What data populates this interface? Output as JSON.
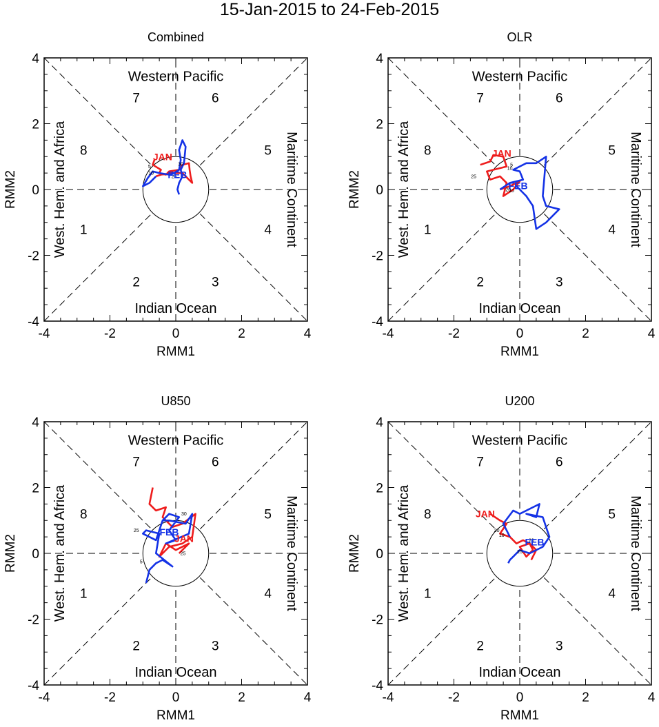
{
  "title": "15-Jan-2015 to 24-Feb-2015",
  "colors": {
    "jan": "#ee1c1c",
    "feb": "#1432e6",
    "axes": "#000000"
  },
  "labels": {
    "xlabel": "RMM1",
    "ylabel": "RMM2",
    "regions": {
      "top": "Western Pacific",
      "bottom": "Indian Ocean",
      "left": "West. Hem. and Africa",
      "right": "Maritime Continent"
    },
    "phases": [
      "1",
      "2",
      "3",
      "4",
      "5",
      "6",
      "7",
      "8"
    ],
    "months": [
      "JAN",
      "FEB"
    ]
  },
  "chart_data": [
    {
      "type": "line",
      "title": "Combined",
      "xlabel": "RMM1",
      "ylabel": "RMM2",
      "xlim": [
        -4,
        4
      ],
      "ylim": [
        -4,
        4
      ],
      "xticks": [
        "-4",
        "-2",
        "0",
        "2",
        "4"
      ],
      "yticks": [
        "-4",
        "-2",
        "0",
        "2",
        "4"
      ],
      "series": [
        {
          "name": "JAN",
          "x": [
            -0.65,
            -0.7,
            -0.45,
            -0.5,
            -0.3,
            -0.2,
            0.1,
            0.2,
            0.4,
            0.42,
            0.45,
            0.5,
            0.4,
            0.2,
            -0.1,
            -0.45,
            -0.6
          ],
          "y": [
            0.9,
            0.75,
            0.6,
            0.5,
            0.45,
            0.55,
            0.6,
            0.75,
            0.8,
            0.6,
            0.4,
            0.2,
            0.3,
            0.5,
            0.5,
            0.45,
            0.4
          ]
        },
        {
          "name": "FEB",
          "x": [
            -0.6,
            -0.8,
            -1.0,
            -0.85,
            -0.7,
            -0.5,
            -0.2,
            -0.05,
            0.1,
            0.15,
            0.1,
            0.2,
            0.3,
            0.25,
            0.15,
            0.2,
            0.1,
            0.05,
            0.1
          ],
          "y": [
            0.4,
            0.2,
            0.1,
            0.35,
            0.55,
            0.5,
            0.45,
            0.5,
            0.6,
            0.9,
            1.2,
            1.5,
            1.3,
            0.8,
            0.6,
            0.4,
            0.2,
            0.0,
            -0.15
          ]
        }
      ],
      "month_labels": [
        {
          "text": "JAN",
          "x": -0.4,
          "y": 1.0,
          "series": "JAN"
        },
        {
          "text": "FEB",
          "x": 0.05,
          "y": 0.45,
          "series": "FEB"
        }
      ],
      "day_labels": [
        {
          "text": "5",
          "x": -0.8,
          "y": 0.65
        },
        {
          "text": "10",
          "x": -0.75,
          "y": 0.45
        },
        {
          "text": "30",
          "x": 0.15,
          "y": 0.72
        },
        {
          "text": "25",
          "x": -0.05,
          "y": 0.35
        }
      ]
    },
    {
      "type": "line",
      "title": "OLR",
      "xlabel": "RMM1",
      "ylabel": "RMM2",
      "xlim": [
        -4,
        4
      ],
      "ylim": [
        -4,
        4
      ],
      "xticks": [
        "-4",
        "-2",
        "0",
        "2",
        "4"
      ],
      "yticks": [
        "-4",
        "-2",
        "0",
        "2",
        "4"
      ],
      "series": [
        {
          "name": "JAN",
          "x": [
            -1.2,
            -0.9,
            -0.8,
            -0.5,
            -0.4,
            -1.0,
            -0.9,
            -0.6,
            -0.4,
            -0.5,
            -0.2,
            0.0,
            -0.3,
            -0.6
          ],
          "y": [
            0.75,
            0.85,
            1.05,
            1.0,
            0.7,
            0.55,
            0.3,
            0.4,
            0.2,
            -0.2,
            0.0,
            0.25,
            0.1,
            0.0
          ]
        },
        {
          "name": "FEB",
          "x": [
            -0.6,
            -0.3,
            0.1,
            0.0,
            -0.2,
            0.2,
            0.5,
            0.8,
            0.7,
            0.8,
            1.2,
            0.8,
            0.5,
            0.4,
            0.2,
            0.0,
            -0.1,
            0.0
          ],
          "y": [
            0.0,
            0.2,
            0.3,
            0.55,
            0.6,
            0.8,
            0.8,
            1.0,
            -0.2,
            -0.5,
            -0.6,
            -1.0,
            -1.2,
            -0.5,
            -0.2,
            0.0,
            0.1,
            0.0
          ]
        }
      ],
      "month_labels": [
        {
          "text": "JAN",
          "x": -0.55,
          "y": 1.1,
          "series": "JAN"
        },
        {
          "text": "FEB",
          "x": -0.05,
          "y": 0.12,
          "series": "FEB"
        }
      ],
      "day_labels": [
        {
          "text": "25",
          "x": -1.4,
          "y": 0.35
        },
        {
          "text": "5",
          "x": -0.25,
          "y": 0.7
        },
        {
          "text": "10",
          "x": -0.3,
          "y": 0.6
        },
        {
          "text": "20",
          "x": -0.35,
          "y": -0.05
        },
        {
          "text": "10",
          "x": -0.25,
          "y": -0.08
        }
      ]
    },
    {
      "type": "line",
      "title": "U850",
      "xlabel": "RMM1",
      "ylabel": "RMM2",
      "xlim": [
        -4,
        4
      ],
      "ylim": [
        -4,
        4
      ],
      "xticks": [
        "-4",
        "-2",
        "0",
        "2",
        "4"
      ],
      "yticks": [
        "-4",
        "-2",
        "0",
        "2",
        "4"
      ],
      "series": [
        {
          "name": "JAN",
          "x": [
            -0.7,
            -0.8,
            -0.6,
            -0.3,
            -0.4,
            -0.1,
            0.2,
            0.6,
            0.5,
            0.2,
            -0.2,
            -0.5,
            -0.3,
            0.0,
            0.4,
            0.1
          ],
          "y": [
            2.0,
            1.5,
            1.3,
            1.4,
            1.1,
            0.8,
            0.9,
            1.2,
            0.5,
            0.3,
            0.2,
            -0.1,
            0.3,
            0.1,
            0.3,
            0.0
          ]
        },
        {
          "name": "FEB",
          "x": [
            -0.9,
            -0.8,
            -0.6,
            -0.4,
            -0.1,
            -0.6,
            -0.5,
            -0.9,
            -1.0,
            -0.6,
            -0.4,
            -0.2,
            0.1,
            -0.2,
            0.0,
            -0.3,
            0.4,
            0.5,
            0.3,
            -0.2,
            -0.4
          ],
          "y": [
            -0.9,
            -0.5,
            -0.3,
            -0.2,
            -0.4,
            0.0,
            0.6,
            0.7,
            0.6,
            0.4,
            1.0,
            1.2,
            1.1,
            0.7,
            0.4,
            0.3,
            0.6,
            1.2,
            0.9,
            1.0,
            1.0
          ]
        }
      ],
      "month_labels": [
        {
          "text": "JAN",
          "x": 0.25,
          "y": 0.45,
          "series": "JAN"
        },
        {
          "text": "FEB",
          "x": -0.2,
          "y": 0.65,
          "series": "FEB"
        }
      ],
      "day_labels": [
        {
          "text": "25",
          "x": -1.2,
          "y": 0.65
        },
        {
          "text": "5",
          "x": -1.05,
          "y": -0.3
        },
        {
          "text": "30",
          "x": 0.25,
          "y": 1.15
        },
        {
          "text": "25",
          "x": 0.22,
          "y": -0.05
        }
      ]
    },
    {
      "type": "line",
      "title": "U200",
      "xlabel": "RMM1",
      "ylabel": "RMM2",
      "xlim": [
        -4,
        4
      ],
      "ylim": [
        -4,
        4
      ],
      "xticks": [
        "-4",
        "-2",
        "0",
        "2",
        "4"
      ],
      "yticks": [
        "-4",
        "-2",
        "0",
        "2",
        "4"
      ],
      "series": [
        {
          "name": "JAN",
          "x": [
            -0.9,
            -0.6,
            -0.4,
            -0.6,
            -0.3,
            -0.1,
            0.1,
            0.3,
            0.4,
            0.2,
            0.0,
            0.3,
            0.5,
            0.35
          ],
          "y": [
            1.2,
            1.0,
            0.9,
            0.6,
            0.5,
            0.3,
            0.4,
            0.3,
            0.1,
            -0.1,
            0.2,
            0.3,
            0.1,
            -0.2
          ]
        },
        {
          "name": "FEB",
          "x": [
            -0.3,
            -0.5,
            -0.2,
            0.0,
            0.4,
            0.6,
            0.5,
            0.2,
            0.7,
            0.9,
            0.7,
            0.3,
            0.0,
            -0.2,
            -0.3,
            -0.35
          ],
          "y": [
            0.5,
            0.9,
            1.3,
            1.2,
            1.4,
            1.5,
            1.1,
            1.2,
            1.1,
            0.5,
            0.2,
            0.0,
            0.1,
            -0.1,
            -0.2,
            -0.3
          ]
        }
      ],
      "month_labels": [
        {
          "text": "JAN",
          "x": -1.05,
          "y": 1.2,
          "series": "JAN"
        },
        {
          "text": "FEB",
          "x": 0.45,
          "y": 0.35,
          "series": "FEB"
        }
      ],
      "day_labels": [
        {
          "text": "20",
          "x": -0.7,
          "y": 0.65
        },
        {
          "text": "10",
          "x": -0.55,
          "y": 0.5
        },
        {
          "text": "25",
          "x": 0.0,
          "y": 0.0
        },
        {
          "text": "20",
          "x": 0.35,
          "y": 0.35
        }
      ]
    }
  ]
}
